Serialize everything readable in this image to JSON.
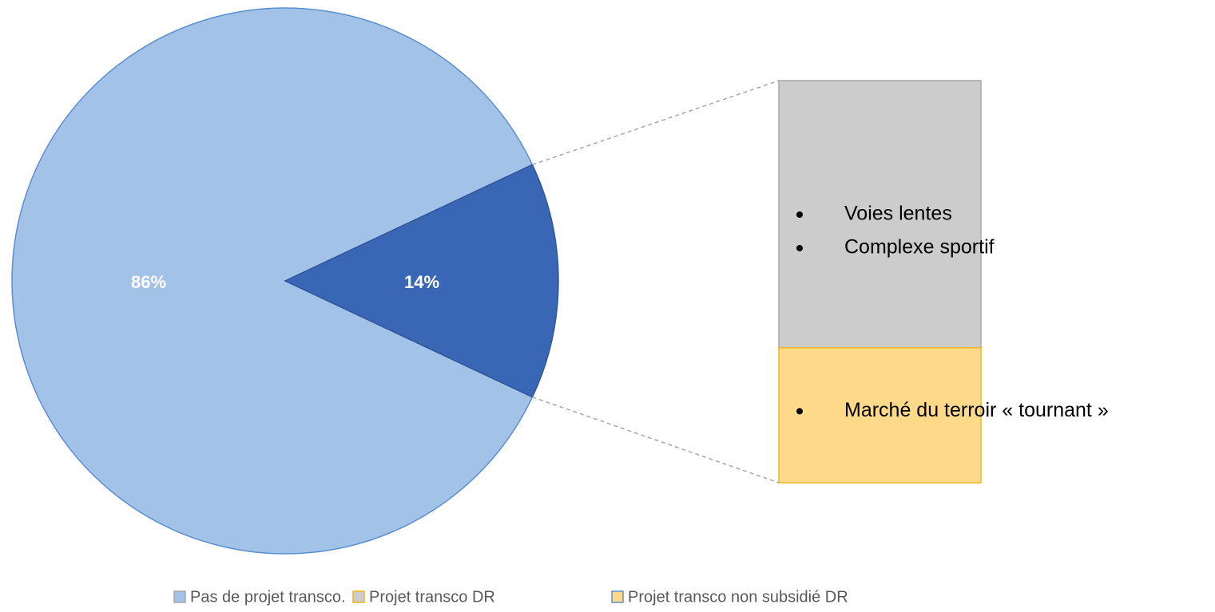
{
  "chart_data": {
    "type": "pie-of-bar",
    "series": [
      {
        "name": "Pas de projet transco.",
        "color": "#a3c2e8",
        "values": [
          86
        ],
        "value_labels": [
          "86%"
        ]
      },
      {
        "name": "Projet transco DR",
        "color": "#cccccc",
        "values": [
          9.3
        ]
      },
      {
        "name": "Projet transco non subsidié DR",
        "color": "#fed98a",
        "values": [
          4.7
        ]
      }
    ],
    "other": {
      "value": 14,
      "label": "14%",
      "color": "#3a67b5"
    },
    "annotations": [
      [
        "Voies lentes",
        "Complexe sportif"
      ],
      [
        "Marché du terroir « tournant »"
      ]
    ],
    "legend": "bottom"
  }
}
